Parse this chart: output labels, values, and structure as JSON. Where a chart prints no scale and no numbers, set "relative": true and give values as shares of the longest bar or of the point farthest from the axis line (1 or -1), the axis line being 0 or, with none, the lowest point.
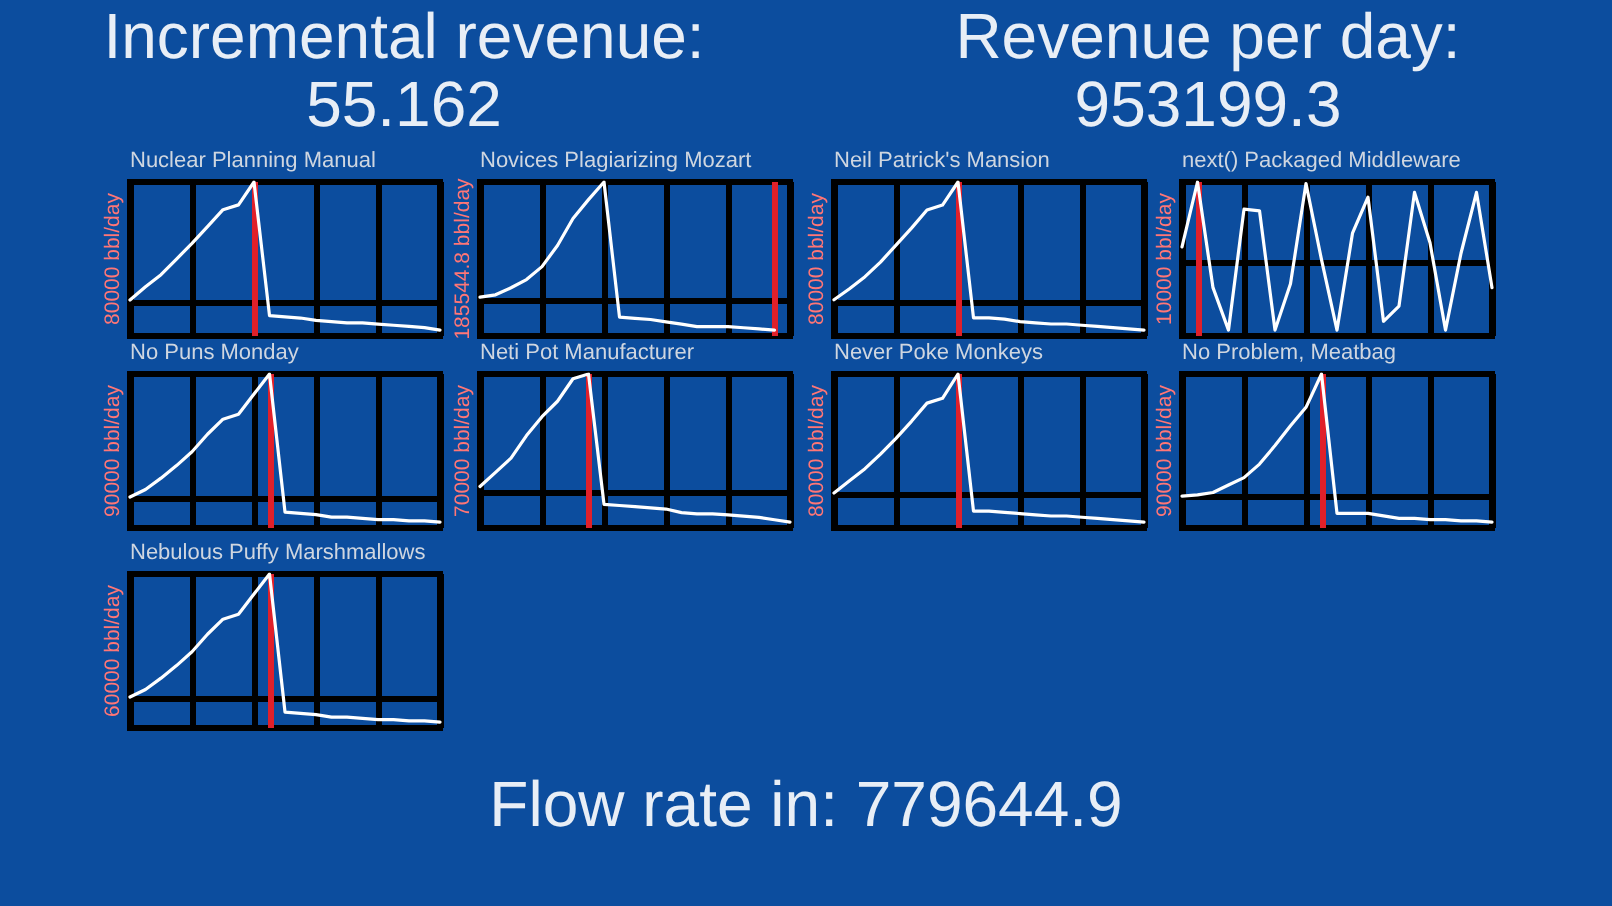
{
  "chart_data": [
    {
      "type": "other",
      "title": "Incremental revenue: 55.162"
    },
    {
      "type": "other",
      "title": "Revenue per day: 953199.3"
    },
    {
      "type": "line",
      "title": "Nuclear Planning Manual",
      "ylabel": "80000 bbl/day",
      "relative": true,
      "grid": "x",
      "categories": [
        null,
        null,
        null,
        null,
        null,
        null,
        null,
        null,
        null,
        null,
        null,
        null,
        null,
        null,
        null,
        null,
        null,
        null,
        null,
        null,
        null
      ],
      "series": [
        {
          "color": "#ffffff",
          "values": [
            0.02,
            0.13,
            0.23,
            0.36,
            0.49,
            0.63,
            0.77,
            0.81,
            1,
            -0.11,
            -0.12,
            -0.13,
            -0.15,
            -0.16,
            -0.17,
            -0.17,
            -0.18,
            -0.19,
            -0.2,
            -0.21,
            -0.23
          ]
        }
      ]
    },
    {
      "type": "line",
      "title": "Novices Plagiarizing Mozart",
      "ylabel": "185544.8 bbl/day",
      "relative": true,
      "grid": "x",
      "categories": [
        null,
        null,
        null,
        null,
        null,
        null,
        null,
        null,
        null,
        null,
        null,
        null,
        null,
        null,
        null,
        null,
        null,
        null,
        null,
        null,
        null
      ],
      "series": [
        {
          "color": "#ffffff",
          "values": [
            0.02,
            0.04,
            0.1,
            0.17,
            0.28,
            0.46,
            0.69,
            0.85,
            1,
            -0.15,
            -0.16,
            -0.17,
            -0.19,
            -0.21,
            -0.23,
            -0.23,
            -0.23,
            -0.24,
            -0.25,
            -0.26,
            null
          ]
        }
      ]
    },
    {
      "type": "line",
      "title": "Neil Patrick's Mansion",
      "ylabel": "80000 bbl/day",
      "relative": true,
      "grid": "x",
      "categories": [
        null,
        null,
        null,
        null,
        null,
        null,
        null,
        null,
        null,
        null,
        null,
        null,
        null,
        null,
        null,
        null,
        null,
        null,
        null,
        null,
        null
      ],
      "series": [
        {
          "color": "#ffffff",
          "values": [
            0.03,
            0.12,
            0.22,
            0.34,
            0.48,
            0.62,
            0.77,
            0.81,
            1,
            -0.12,
            -0.12,
            -0.13,
            -0.15,
            -0.16,
            -0.17,
            -0.17,
            -0.18,
            -0.19,
            -0.2,
            -0.21,
            -0.22
          ]
        }
      ]
    },
    {
      "type": "line",
      "title": "next() Packaged Middleware",
      "ylabel": "10000 bbl/day",
      "relative": true,
      "grid": "x",
      "categories": [
        null,
        null,
        null,
        null,
        null,
        null,
        null,
        null,
        null,
        null,
        null,
        null,
        null,
        null,
        null,
        null,
        null,
        null,
        null,
        null,
        null
      ],
      "series": [
        {
          "color": "#ffffff",
          "values": [
            0.19,
            1,
            -0.32,
            -0.85,
            0.66,
            0.64,
            -0.85,
            -0.27,
            0.98,
            0.03,
            -0.85,
            0.36,
            0.81,
            -0.74,
            -0.55,
            0.87,
            0.24,
            -0.85,
            0.11,
            0.87,
            -0.32
          ]
        }
      ]
    },
    {
      "type": "line",
      "title": "No Puns Monday",
      "ylabel": "90000 bbl/day",
      "relative": true,
      "grid": "x",
      "categories": [
        null,
        null,
        null,
        null,
        null,
        null,
        null,
        null,
        null,
        null,
        null,
        null,
        null,
        null,
        null,
        null,
        null,
        null,
        null,
        null,
        null
      ],
      "series": [
        {
          "color": "#ffffff",
          "values": [
            0.02,
            0.08,
            0.17,
            0.27,
            0.38,
            0.52,
            0.64,
            0.68,
            0.84,
            1,
            -0.1,
            -0.11,
            -0.12,
            -0.14,
            -0.14,
            -0.15,
            -0.16,
            -0.16,
            -0.17,
            -0.17,
            -0.18
          ]
        }
      ]
    },
    {
      "type": "line",
      "title": "Neti Pot Manufacturer",
      "ylabel": "70000 bbl/day",
      "relative": true,
      "grid": "x",
      "categories": [
        null,
        null,
        null,
        null,
        null,
        null,
        null,
        null,
        null,
        null,
        null,
        null,
        null,
        null,
        null,
        null,
        null,
        null,
        null,
        null,
        null
      ],
      "series": [
        {
          "color": "#ffffff",
          "values": [
            0.05,
            0.17,
            0.29,
            0.48,
            0.64,
            0.77,
            0.96,
            1,
            -0.1,
            -0.11,
            -0.12,
            -0.13,
            -0.14,
            -0.17,
            -0.18,
            -0.18,
            -0.19,
            -0.2,
            -0.21,
            -0.23,
            -0.25
          ]
        }
      ]
    },
    {
      "type": "line",
      "title": "Never Poke Monkeys",
      "ylabel": "80000 bbl/day",
      "relative": true,
      "grid": "x",
      "categories": [
        null,
        null,
        null,
        null,
        null,
        null,
        null,
        null,
        null,
        null,
        null,
        null,
        null,
        null,
        null,
        null,
        null,
        null,
        null,
        null,
        null
      ],
      "series": [
        {
          "color": "#ffffff",
          "values": [
            0.02,
            0.12,
            0.22,
            0.34,
            0.47,
            0.61,
            0.76,
            0.8,
            1,
            -0.13,
            -0.13,
            -0.14,
            -0.15,
            -0.16,
            -0.17,
            -0.17,
            -0.18,
            -0.19,
            -0.2,
            -0.21,
            -0.22
          ]
        }
      ]
    },
    {
      "type": "line",
      "title": "No Problem, Meatbag",
      "ylabel": "90000 bbl/day",
      "relative": true,
      "grid": "x",
      "categories": [
        null,
        null,
        null,
        null,
        null,
        null,
        null,
        null,
        null,
        null,
        null,
        null,
        null,
        null,
        null,
        null,
        null,
        null,
        null,
        null,
        null
      ],
      "series": [
        {
          "color": "#ffffff",
          "values": [
            0.01,
            0.02,
            0.04,
            0.1,
            0.16,
            0.27,
            0.42,
            0.58,
            0.73,
            1,
            -0.13,
            -0.13,
            -0.13,
            -0.15,
            -0.17,
            -0.17,
            -0.18,
            -0.18,
            -0.19,
            -0.19,
            -0.2
          ]
        }
      ]
    },
    {
      "type": "line",
      "title": "Nebulous Puffy Marshmallows",
      "ylabel": "60000 bbl/day",
      "relative": true,
      "grid": "x",
      "categories": [
        null,
        null,
        null,
        null,
        null,
        null,
        null,
        null,
        null,
        null,
        null,
        null,
        null,
        null,
        null,
        null,
        null,
        null,
        null,
        null,
        null
      ],
      "series": [
        {
          "color": "#ffffff",
          "values": [
            0.02,
            0.08,
            0.17,
            0.27,
            0.38,
            0.52,
            0.64,
            0.68,
            0.84,
            1,
            -0.1,
            -0.11,
            -0.12,
            -0.14,
            -0.14,
            -0.15,
            -0.16,
            -0.16,
            -0.17,
            -0.17,
            -0.18
          ]
        }
      ]
    },
    {
      "type": "other",
      "title": "Flow rate in: 779644.9"
    }
  ]
}
